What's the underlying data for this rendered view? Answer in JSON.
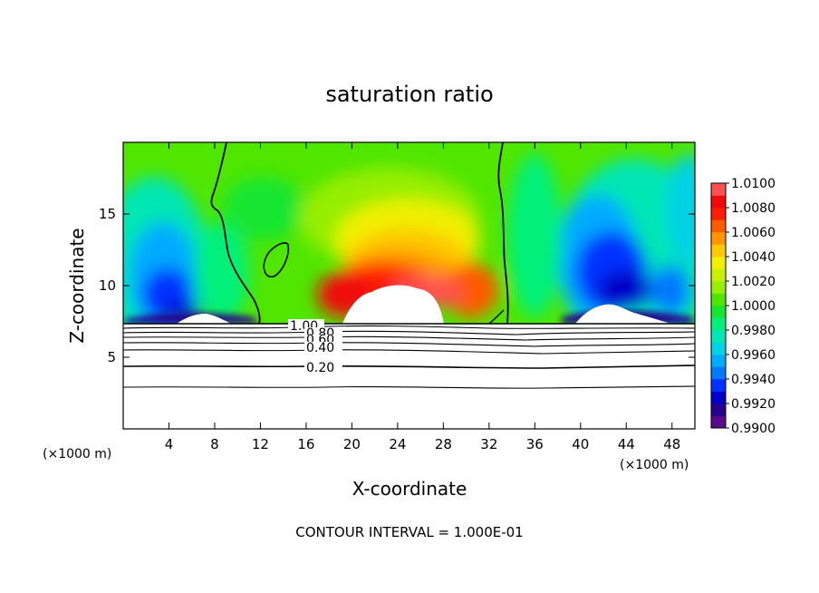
{
  "chart_data": {
    "type": "heatmap",
    "title": "saturation ratio",
    "xlabel": "X-coordinate",
    "ylabel": "Z-coordinate",
    "x_unit_left": "(×1000 m)",
    "x_unit_right": "(×1000 m)",
    "footer": "CONTOUR INTERVAL = 1.000E-01",
    "xlim": [
      0,
      50
    ],
    "ylim": [
      0,
      20
    ],
    "x_ticks": [
      4,
      8,
      12,
      16,
      20,
      24,
      28,
      32,
      36,
      40,
      44,
      48
    ],
    "y_ticks": [
      5,
      10,
      15
    ],
    "colorbar": {
      "levels": [
        0.99,
        0.991,
        0.992,
        0.993,
        0.994,
        0.995,
        0.996,
        0.997,
        0.998,
        0.999,
        1.0,
        1.001,
        1.002,
        1.003,
        1.004,
        1.005,
        1.006,
        1.007,
        1.008,
        1.009,
        1.01
      ],
      "labels": [
        "0.9900",
        "0.9920",
        "0.9940",
        "0.9960",
        "0.9980",
        "1.0000",
        "1.0020",
        "1.0040",
        "1.0060",
        "1.0080",
        "1.0100"
      ],
      "colors": [
        "#5a0a8c",
        "#26008c",
        "#0000c8",
        "#0032ff",
        "#0078ff",
        "#00aaff",
        "#00d2e6",
        "#00e6b4",
        "#00f07a",
        "#14e632",
        "#50e600",
        "#96ee00",
        "#c8f000",
        "#f0f000",
        "#ffc800",
        "#ff9600",
        "#ff5a00",
        "#ff1e00",
        "#f00a0a",
        "#ff5050",
        "#ff9696"
      ]
    },
    "contour_labels": [
      "1.00",
      "0.80",
      "0.60",
      "0.40",
      "0.20"
    ],
    "cloud_base_z": 7.3
  }
}
